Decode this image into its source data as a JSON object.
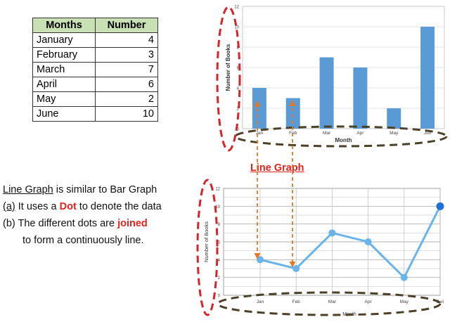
{
  "table": {
    "headers": [
      "Months",
      "Number"
    ],
    "rows": [
      {
        "month": "January",
        "number": "4"
      },
      {
        "month": "February",
        "number": "3"
      },
      {
        "month": "March",
        "number": "7"
      },
      {
        "month": "April",
        "number": "6"
      },
      {
        "month": "May",
        "number": "2"
      },
      {
        "month": "June",
        "number": "10"
      }
    ]
  },
  "explanation": {
    "line1_term": "Line Graph",
    "line1_rest": " is similar to Bar Graph",
    "line2_label": "(a)",
    "line2_pre": " It uses a ",
    "line2_key": "Dot",
    "line2_post": " to denote the data",
    "line3_pre": "(b) The different dots are ",
    "line3_key": "joined",
    "line4": "to form a continuously line."
  },
  "line_graph_title": "Line Graph",
  "chart_data": [
    {
      "type": "bar",
      "categories": [
        "Jan",
        "Feb",
        "Mar",
        "Apr",
        "May",
        "Jun"
      ],
      "values": [
        4,
        3,
        7,
        6,
        2,
        10
      ],
      "xlabel": "Month",
      "ylabel": "Number of Books",
      "ylim": [
        0,
        12
      ],
      "yticks": [
        "0",
        "2",
        "4",
        "6",
        "8",
        "10",
        "12"
      ],
      "bar_color": "#5b9bd5"
    },
    {
      "type": "line",
      "categories": [
        "Jan",
        "Feb",
        "Mar",
        "Apr",
        "May",
        "Jun"
      ],
      "values": [
        4,
        3,
        7,
        6,
        2,
        10
      ],
      "xlabel": "Month",
      "ylabel": "Number of Books",
      "ylim": [
        0,
        12
      ],
      "yticks": [
        "0",
        "2",
        "4",
        "6",
        "8",
        "10",
        "12"
      ],
      "line_color": "#6ab4ec",
      "last_point_color": "#1e6fd9"
    }
  ]
}
